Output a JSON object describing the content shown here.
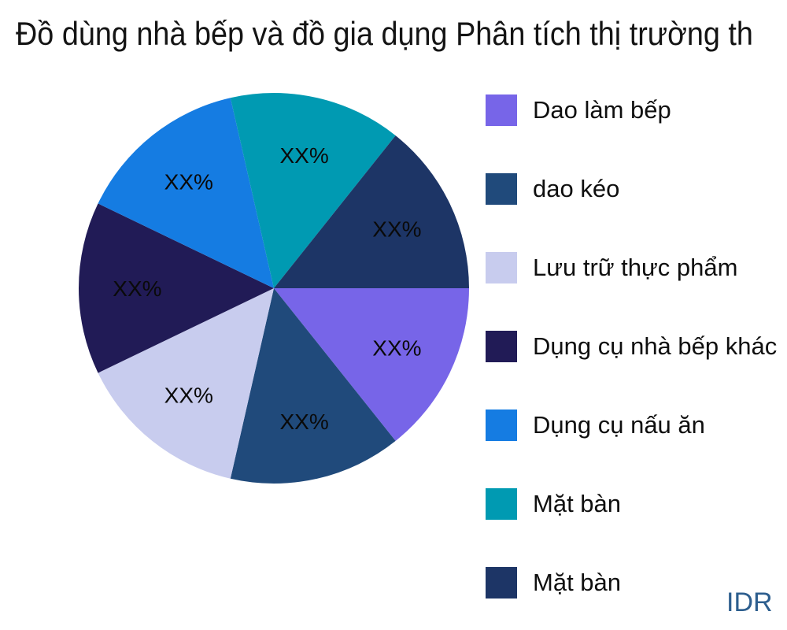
{
  "title": "Đồ dùng nhà bếp và đồ gia dụng Phân tích thị trường th",
  "watermark": "IDR",
  "colors": {
    "title_text": "#141414",
    "slice_label_text": "#0a0a0a",
    "watermark_text": "#2d5e8e"
  },
  "chart_data": {
    "type": "pie",
    "title": "Đồ dùng nhà bếp và đồ gia dụng Phân tích thị trường th",
    "categories": [
      "Dao làm bếp",
      "dao kéo",
      "Lưu trữ thực phẩm",
      "Dụng cụ nhà bếp khác",
      "Dụng cụ nấu ăn",
      "Mặt bàn",
      "Mặt bàn"
    ],
    "values": [
      14.29,
      14.29,
      14.29,
      14.29,
      14.29,
      14.29,
      14.29
    ],
    "value_labels": [
      "XX%",
      "XX%",
      "XX%",
      "XX%",
      "XX%",
      "XX%",
      "XX%"
    ],
    "colors": [
      "#7765e8",
      "#204a7b",
      "#c8ccee",
      "#211b56",
      "#157ce2",
      "#009ab2",
      "#1d3566"
    ],
    "legend_position": "right",
    "start_angle_deg": 0,
    "direction": "clockwise",
    "label_distance": 0.7
  },
  "legend": {
    "items": [
      {
        "label": "Dao làm bếp",
        "color": "#7765e8"
      },
      {
        "label": "dao kéo",
        "color": "#204a7b"
      },
      {
        "label": "Lưu trữ thực phẩm",
        "color": "#c8ccee"
      },
      {
        "label": "Dụng cụ nhà bếp khác",
        "color": "#211b56"
      },
      {
        "label": "Dụng cụ nấu ăn",
        "color": "#157ce2"
      },
      {
        "label": "Mặt bàn",
        "color": "#009ab2"
      },
      {
        "label": "Mặt bàn",
        "color": "#1d3566"
      }
    ]
  }
}
